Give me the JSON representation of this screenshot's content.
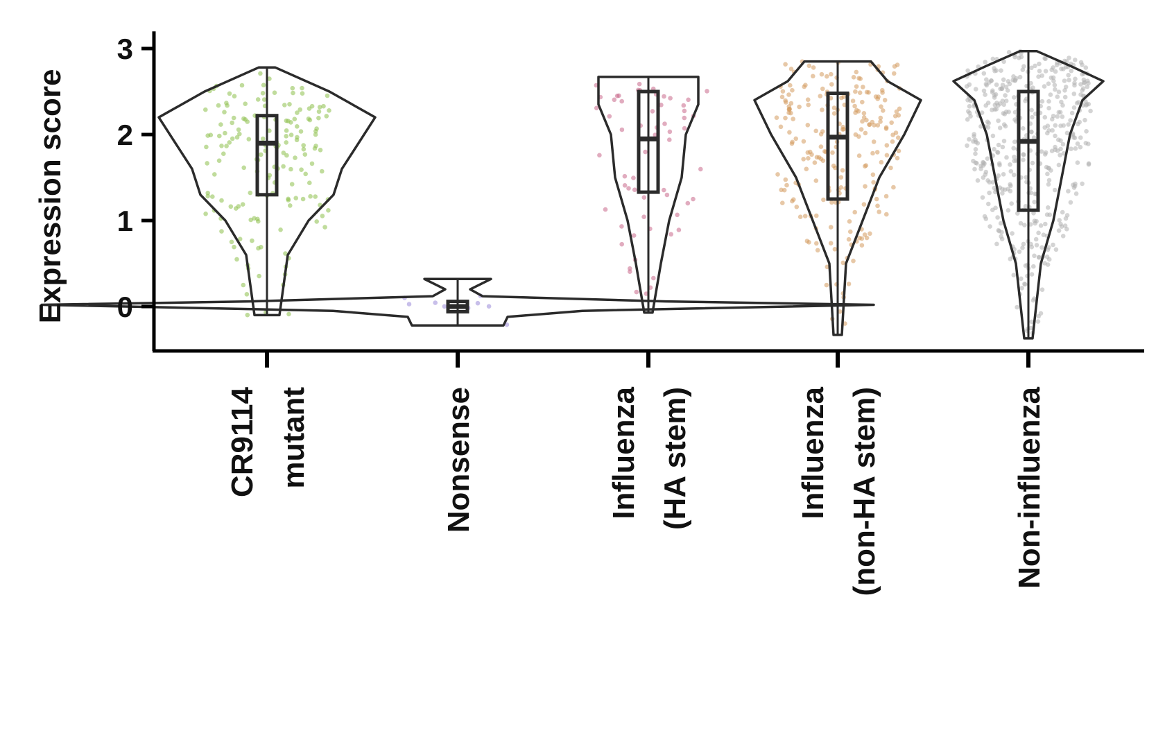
{
  "chart_data": {
    "type": "violin",
    "ylabel": "Expression score",
    "xlabel": "",
    "ylim": [
      -0.52,
      3.2
    ],
    "yticks": [
      0,
      1,
      2,
      3
    ],
    "grid": false,
    "categories": [
      {
        "lines": [
          "CR9114",
          "mutant"
        ],
        "color": "#8cc04a",
        "n_points": 170,
        "min": -0.1,
        "max": 2.78,
        "q1": 1.3,
        "median": 1.9,
        "q3": 2.22,
        "violin_widths": [
          [
            -0.1,
            0.003
          ],
          [
            0.6,
            0.005
          ],
          [
            1.0,
            0.01
          ],
          [
            1.3,
            0.016
          ],
          [
            1.6,
            0.018
          ],
          [
            1.9,
            0.022
          ],
          [
            2.2,
            0.026
          ],
          [
            2.5,
            0.015
          ],
          [
            2.78,
            0.002
          ]
        ]
      },
      {
        "lines": [
          "Nonsense"
        ],
        "color": "#9a8ad8",
        "n_points": 9,
        "min": -0.22,
        "max": 0.32,
        "q1": -0.06,
        "median": 0.0,
        "q3": 0.06,
        "violin_widths": [
          [
            -0.22,
            0.011
          ],
          [
            -0.12,
            0.012
          ],
          [
            -0.05,
            0.03
          ],
          [
            0.02,
            0.1
          ],
          [
            0.06,
            0.05
          ],
          [
            0.12,
            0.006
          ],
          [
            0.2,
            0.003
          ],
          [
            0.32,
            0.008
          ]
        ]
      },
      {
        "lines": [
          "Influenza",
          "(HA stem)"
        ],
        "color": "#c9688a",
        "n_points": 60,
        "min": -0.07,
        "max": 2.67,
        "q1": 1.33,
        "median": 1.95,
        "q3": 2.5,
        "violin_widths": [
          [
            -0.07,
            0.001
          ],
          [
            0.5,
            0.003
          ],
          [
            1.0,
            0.005
          ],
          [
            1.5,
            0.008
          ],
          [
            2.0,
            0.009
          ],
          [
            2.35,
            0.012
          ],
          [
            2.67,
            0.012
          ]
        ]
      },
      {
        "lines": [
          "Influenza",
          "(non-HA stem)"
        ],
        "color": "#d49a5e",
        "n_points": 230,
        "min": -0.33,
        "max": 2.85,
        "q1": 1.25,
        "median": 1.97,
        "q3": 2.48,
        "violin_widths": [
          [
            -0.33,
            0.001
          ],
          [
            0.5,
            0.002
          ],
          [
            1.0,
            0.006
          ],
          [
            1.5,
            0.01
          ],
          [
            2.0,
            0.016
          ],
          [
            2.4,
            0.02
          ],
          [
            2.62,
            0.012
          ],
          [
            2.85,
            0.008
          ]
        ]
      },
      {
        "lines": [
          "Non-influenza"
        ],
        "color": "#b0b0b0",
        "n_points": 460,
        "min": -0.37,
        "max": 2.97,
        "q1": 1.12,
        "median": 1.92,
        "q3": 2.5,
        "violin_widths": [
          [
            -0.37,
            0.001
          ],
          [
            0.5,
            0.003
          ],
          [
            1.0,
            0.006
          ],
          [
            1.5,
            0.008
          ],
          [
            2.0,
            0.01
          ],
          [
            2.4,
            0.013
          ],
          [
            2.62,
            0.018
          ],
          [
            2.8,
            0.01
          ],
          [
            2.97,
            0.002
          ]
        ]
      }
    ]
  }
}
